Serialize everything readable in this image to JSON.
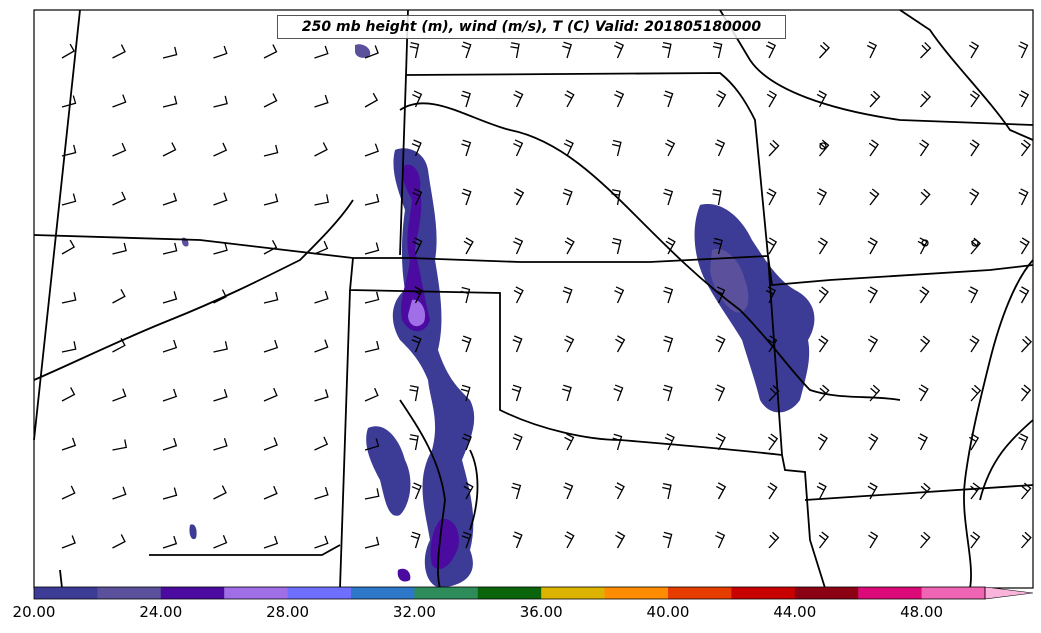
{
  "title": "250 mb height (m), wind (m/s), T (C) Valid: 201805180000",
  "colorbar": {
    "min": 20,
    "max": 52,
    "step": 2,
    "colors": [
      "#3c3c96",
      "#5a509b",
      "#4b0aa0",
      "#a06ee6",
      "#6e6eff",
      "#2d78c8",
      "#2d8c5a",
      "#0a640a",
      "#dcb400",
      "#ff8c00",
      "#e63c00",
      "#c80000",
      "#8c0014",
      "#dc0a78",
      "#f064b4",
      "#fab4dc"
    ],
    "tick_labels": [
      "20.00",
      "24.00",
      "28.00",
      "32.00",
      "36.00",
      "40.00",
      "44.00",
      "48.00"
    ],
    "tick_values": [
      20,
      24,
      28,
      32,
      36,
      40,
      44,
      48
    ]
  },
  "legend_colors": {
    "state_border": "#000000",
    "barb": "#000000"
  }
}
